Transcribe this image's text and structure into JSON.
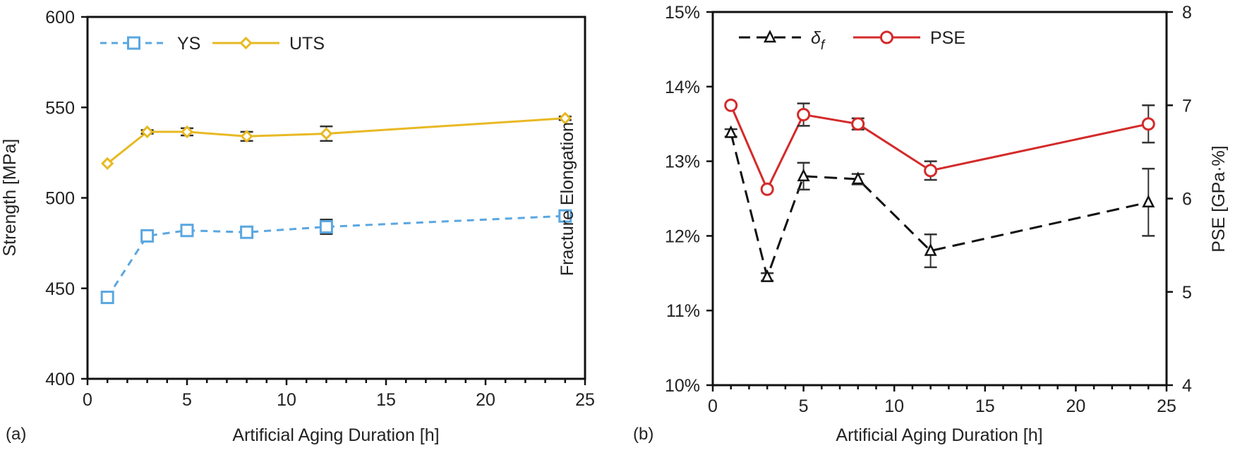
{
  "chart_data": [
    {
      "panel_label": "(a)",
      "type": "line",
      "title": "",
      "xlabel": "Artificial Aging Duration [h]",
      "ylabel": "Strength [MPa]",
      "xlim": [
        0,
        25
      ],
      "ylim": [
        400,
        600
      ],
      "xticks": [
        0,
        5,
        10,
        15,
        20,
        25
      ],
      "yticks": [
        400,
        450,
        500,
        550,
        600
      ],
      "grid": false,
      "legend_position": "top-left",
      "x": [
        1,
        3,
        5,
        8,
        12,
        24
      ],
      "series": [
        {
          "name": "YS",
          "color": "#5aa7e0",
          "line_style": "dashed",
          "marker": "square",
          "axis": "left",
          "values": [
            445,
            479,
            482,
            481,
            484,
            490
          ],
          "errors": [
            0,
            0,
            0,
            0,
            4,
            0
          ]
        },
        {
          "name": "UTS",
          "color": "#e8b923",
          "line_style": "solid",
          "marker": "diamond",
          "axis": "left",
          "values": [
            519,
            536.5,
            536.5,
            534,
            535.5,
            544
          ],
          "errors": [
            0,
            1,
            2,
            2.5,
            4,
            1
          ]
        }
      ]
    },
    {
      "panel_label": "(b)",
      "type": "line",
      "title": "",
      "xlabel": "Artificial Aging Duration [h]",
      "ylabel": "Fracture Elongation",
      "y2label": "PSE [GPa·%]",
      "xlim": [
        0,
        25
      ],
      "ylim": [
        10,
        15
      ],
      "y2lim": [
        4,
        8
      ],
      "xticks": [
        0,
        5,
        10,
        15,
        20,
        25
      ],
      "yticks": [
        "10%",
        "11%",
        "12%",
        "13%",
        "14%",
        "15%"
      ],
      "y2ticks": [
        4,
        5,
        6,
        7,
        8
      ],
      "grid": false,
      "legend_position": "top-left",
      "x": [
        1,
        3,
        5,
        8,
        12,
        24
      ],
      "series": [
        {
          "name": "δf",
          "legend_main": "δ",
          "legend_sub": "f",
          "color": "#111111",
          "line_style": "dashed",
          "marker": "triangle",
          "axis": "left",
          "unit": "%",
          "values": [
            13.38,
            11.45,
            12.8,
            12.76,
            11.8,
            12.45
          ],
          "errors": [
            0.05,
            0.05,
            0.18,
            0.07,
            0.22,
            0.45
          ]
        },
        {
          "name": "PSE",
          "color": "#d42a2a",
          "line_style": "solid",
          "marker": "circle",
          "axis": "right",
          "unit": "GPa·%",
          "values": [
            7.0,
            6.1,
            6.9,
            6.8,
            6.3,
            6.8
          ],
          "errors": [
            0,
            0,
            0.12,
            0.06,
            0.1,
            0.2
          ]
        }
      ]
    }
  ]
}
